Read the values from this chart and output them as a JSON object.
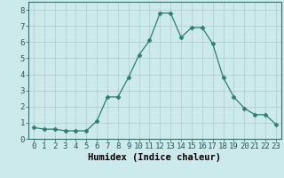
{
  "x": [
    0,
    1,
    2,
    3,
    4,
    5,
    6,
    7,
    8,
    9,
    10,
    11,
    12,
    13,
    14,
    15,
    16,
    17,
    18,
    19,
    20,
    21,
    22,
    23
  ],
  "y": [
    0.7,
    0.6,
    0.6,
    0.5,
    0.5,
    0.5,
    1.1,
    2.6,
    2.6,
    3.8,
    5.2,
    6.1,
    7.8,
    7.8,
    6.3,
    6.9,
    6.9,
    5.9,
    3.8,
    2.6,
    1.9,
    1.5,
    1.5,
    0.9
  ],
  "line_color": "#2e7d6e",
  "marker": "D",
  "marker_size": 2.5,
  "bg_color": "#cce9ec",
  "grid_color": "#b0c8cc",
  "xlabel": "Humidex (Indice chaleur)",
  "tick_fontsize": 6.5,
  "xlabel_fontsize": 7.5,
  "xlim": [
    -0.5,
    23.5
  ],
  "ylim": [
    0,
    8.5
  ],
  "yticks": [
    0,
    1,
    2,
    3,
    4,
    5,
    6,
    7,
    8
  ],
  "xticks": [
    0,
    1,
    2,
    3,
    4,
    5,
    6,
    7,
    8,
    9,
    10,
    11,
    12,
    13,
    14,
    15,
    16,
    17,
    18,
    19,
    20,
    21,
    22,
    23
  ]
}
